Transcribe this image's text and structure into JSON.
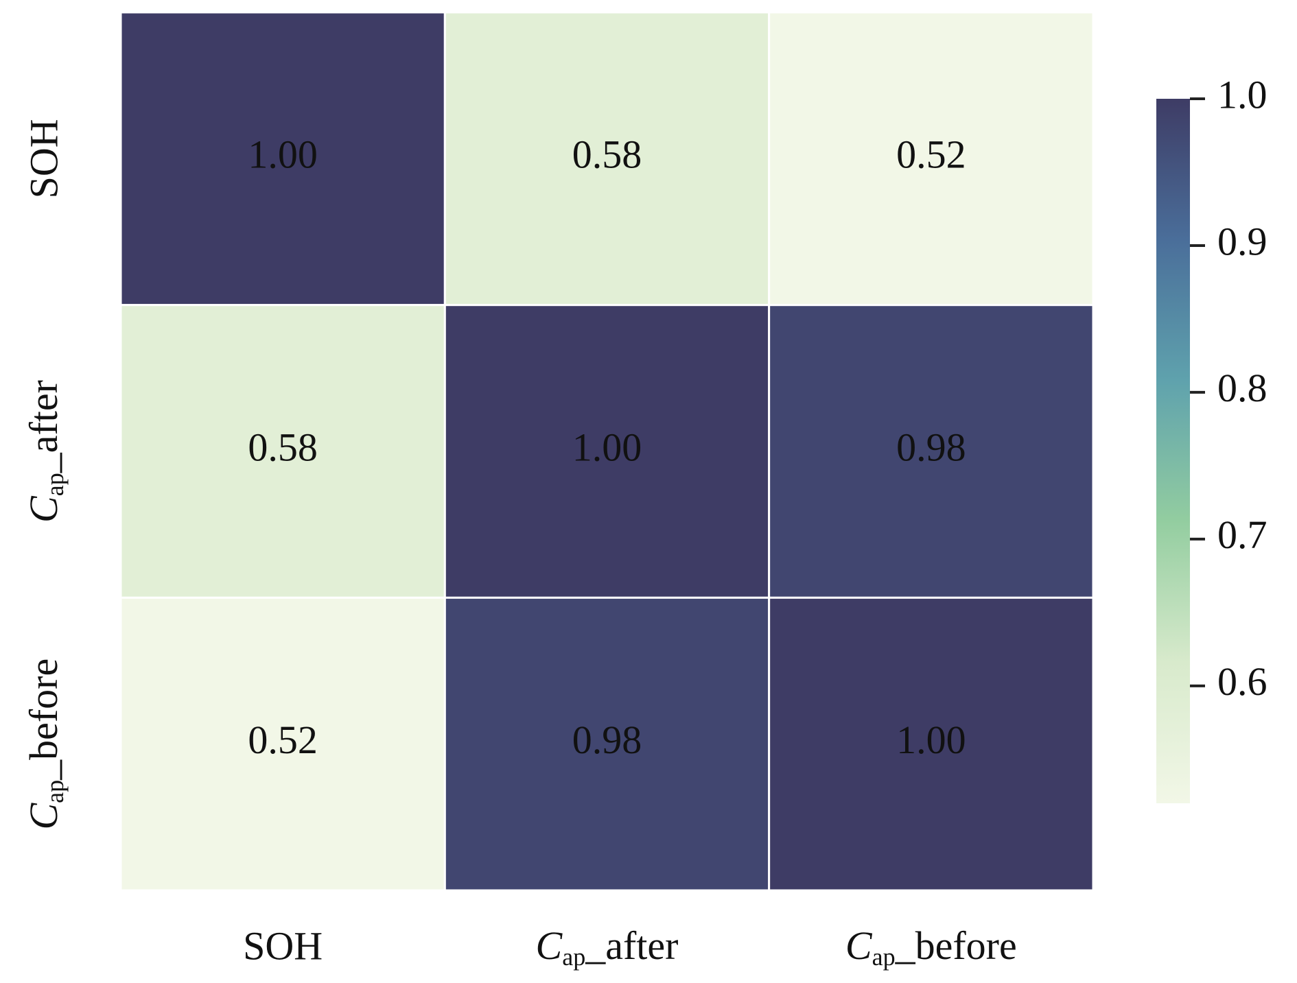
{
  "chart_data": {
    "type": "heatmap",
    "categories": [
      "SOH",
      {
        "italic": "C",
        "sub": "ap",
        "text": "_after"
      },
      {
        "italic": "C",
        "sub": "ap",
        "text": "_before"
      }
    ],
    "values": [
      [
        1.0,
        0.58,
        0.52
      ],
      [
        0.58,
        1.0,
        0.98
      ],
      [
        0.52,
        0.98,
        1.0
      ]
    ],
    "value_labels": [
      [
        "1.00",
        "0.58",
        "0.52"
      ],
      [
        "0.58",
        "1.00",
        "0.98"
      ],
      [
        "0.52",
        "0.98",
        "1.00"
      ]
    ],
    "clim": [
      0.52,
      1.0
    ],
    "colorbar_ticks": [
      0.6,
      0.7,
      0.8,
      0.9,
      {
        "value": 1,
        "label": "1.0"
      }
    ],
    "colormap": [
      "#f2f7e7",
      "#d8eacc",
      "#93cda0",
      "#5fa2ad",
      "#4a6e9a",
      "#3e3c65"
    ]
  }
}
